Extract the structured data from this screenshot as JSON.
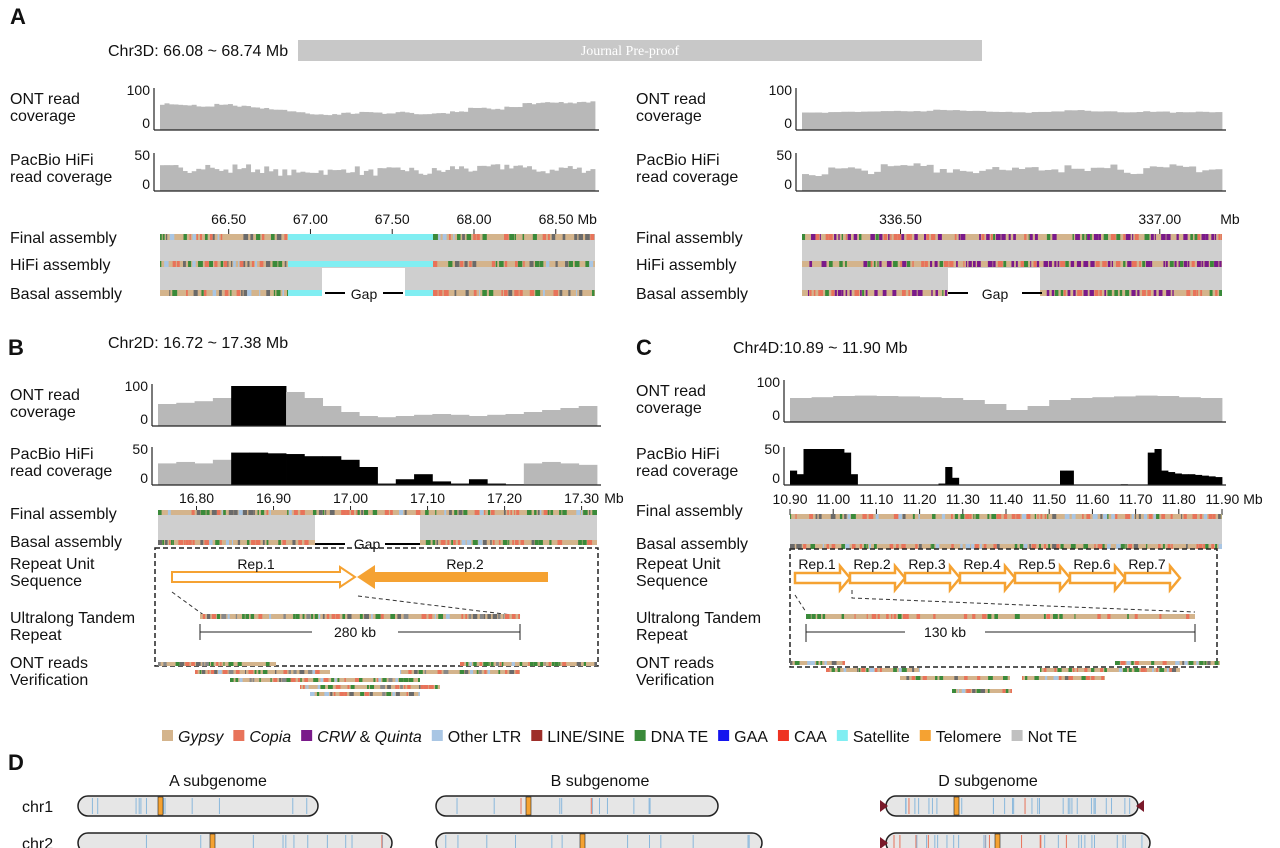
{
  "watermark": "Journal Pre-proof",
  "colors": {
    "Gypsy": "#d4b48c",
    "Copia": "#e8735a",
    "CRW & Quinta": "#7a1a8a",
    "Other LTR": "#a9c6e4",
    "LINE/SINE": "#9e2f2a",
    "DNA TE": "#3a8a3a",
    "GAA": "#1414ee",
    "CAA": "#ee3322",
    "Satellite": "#80eef2",
    "Telomere": "#f5a232",
    "Not TE": "#c0c0c0"
  },
  "panelA": {
    "label": "A",
    "title": "Chr3D: 66.08 ~ 68.74 Mb",
    "left": {
      "ont_label": [
        "ONT read",
        "coverage"
      ],
      "hifi_label": [
        "PacBio HiFi",
        "read coverage"
      ],
      "ont_max": "100",
      "hifi_max": "50",
      "zero": "0",
      "ticks": [
        "66.50",
        "67.00",
        "67.50",
        "68.00",
        "68.50 Mb"
      ],
      "tick_values": [
        66.5,
        67.0,
        67.5,
        68.0,
        68.5
      ],
      "domain": [
        66.08,
        68.74
      ],
      "tracks": [
        "Final assembly",
        "HiFi assembly",
        "Basal assembly"
      ],
      "gap": "Gap",
      "ont": [
        65,
        62,
        58,
        64,
        60,
        55,
        50,
        45,
        40,
        38,
        42,
        45,
        42,
        44,
        40,
        42,
        45,
        55,
        52,
        58,
        66,
        70,
        68,
        70
      ],
      "hifi": [
        32,
        30,
        35,
        28,
        33,
        30,
        26,
        25,
        28,
        27,
        30,
        26,
        28,
        30,
        25,
        28,
        32,
        30,
        33,
        35,
        30,
        28,
        32,
        30
      ]
    },
    "right": {
      "ont_label": [
        "ONT read",
        "coverage"
      ],
      "hifi_label": [
        "PacBio HiFi",
        "read coverage"
      ],
      "ont_max": "100",
      "hifi_max": "50",
      "zero": "0",
      "ticks": [
        "336.50",
        "337.00",
        "Mb"
      ],
      "tick_values": [
        336.5,
        337.0
      ],
      "domain": [
        336.31,
        337.12
      ],
      "tracks": [
        "Final assembly",
        "HiFi assembly",
        "Basal assembly"
      ],
      "gap": "Gap",
      "ont": [
        44,
        45,
        46,
        48,
        47,
        50,
        48,
        46,
        44,
        46,
        49,
        47,
        45,
        46,
        44,
        45
      ],
      "hifi": [
        24,
        30,
        28,
        33,
        36,
        30,
        28,
        33,
        30,
        27,
        32,
        36,
        28,
        30,
        33,
        30
      ]
    }
  },
  "panelB": {
    "label": "B",
    "title": "Chr2D: 16.72 ~ 17.38 Mb",
    "ont_label": [
      "ONT read",
      "coverage"
    ],
    "hifi_label": [
      "PacBio HiFi",
      "read coverage"
    ],
    "ont_max": "100",
    "hifi_max": "50",
    "zero": "0",
    "ticks": [
      "16.80",
      "16.90",
      "17.00",
      "17.10",
      "17.20",
      "17.30",
      "Mb"
    ],
    "tick_values": [
      16.8,
      16.9,
      17.0,
      17.1,
      17.2,
      17.3
    ],
    "domain": [
      16.72,
      17.38
    ],
    "tracks": [
      "Final assembly",
      "Basal assembly"
    ],
    "gap": "Gap",
    "repeat_label": [
      "Repeat Unit",
      "Sequence"
    ],
    "reps": [
      "Rep.1",
      "Rep.2"
    ],
    "ultralong_label": [
      "Ultralong Tandem",
      "Repeat"
    ],
    "length": "280 kb",
    "ont_reads_label": [
      "ONT reads",
      "Verification"
    ],
    "ont": [
      55,
      58,
      62,
      70,
      100,
      100,
      100,
      85,
      70,
      50,
      35,
      25,
      22,
      25,
      28,
      30,
      28,
      25,
      28,
      30,
      35,
      40,
      45,
      50
    ],
    "ont_black": [
      0,
      0,
      0,
      0,
      1,
      1,
      1,
      0,
      0,
      0,
      0,
      0,
      0,
      0,
      0,
      0,
      0,
      0,
      0,
      0,
      0,
      0,
      0,
      0
    ],
    "hifi": [
      30,
      32,
      30,
      35,
      45,
      45,
      44,
      43,
      40,
      40,
      35,
      25,
      2,
      8,
      15,
      5,
      2,
      8,
      2,
      1,
      30,
      32,
      30,
      28
    ],
    "hifi_black": [
      0,
      0,
      0,
      0,
      1,
      1,
      1,
      1,
      1,
      1,
      1,
      1,
      1,
      1,
      1,
      1,
      1,
      1,
      1,
      1,
      0,
      0,
      0,
      0
    ]
  },
  "panelC": {
    "label": "C",
    "title": "Chr4D:10.89 ~ 11.90 Mb",
    "ont_label": [
      "ONT read",
      "coverage"
    ],
    "hifi_label": [
      "PacBio HiFi",
      "read coverage"
    ],
    "ont_max": "100",
    "hifi_max": "50",
    "zero": "0",
    "ticks": [
      "10.90",
      "11.00",
      "11.10",
      "11.20",
      "11.30",
      "11.40",
      "11.50",
      "11.60",
      "11.70",
      "11.80",
      "11.90 Mb"
    ],
    "tick_values": [
      10.9,
      11.0,
      11.1,
      11.2,
      11.3,
      11.4,
      11.5,
      11.6,
      11.7,
      11.8,
      11.9
    ],
    "domain": [
      10.89,
      11.9
    ],
    "tracks": [
      "Final assembly",
      "Basal assembly"
    ],
    "repeat_label": [
      "Repeat Unit",
      "Sequence"
    ],
    "reps": [
      "Rep.1",
      "Rep.2",
      "Rep.3",
      "Rep.4",
      "Rep.5",
      "Rep.6",
      "Rep.7"
    ],
    "ultralong_label": [
      "Ultralong Tandem",
      "Repeat"
    ],
    "length": "130 kb",
    "ont_reads_label": [
      "ONT reads",
      "Verification"
    ],
    "ont": [
      60,
      62,
      65,
      66,
      65,
      64,
      62,
      60,
      55,
      45,
      30,
      40,
      55,
      60,
      62,
      64,
      66,
      65,
      62,
      60
    ],
    "hifi": [
      20,
      15,
      50,
      50,
      50,
      50,
      50,
      50,
      45,
      15,
      0,
      0,
      0,
      0,
      0,
      0,
      0,
      0,
      0,
      0,
      0,
      0,
      2,
      25,
      10,
      0,
      0,
      0,
      0,
      0,
      0,
      0,
      0,
      0,
      0,
      0,
      0,
      0,
      0,
      0,
      20,
      20,
      0,
      0,
      0,
      0,
      0,
      0,
      0,
      1,
      0,
      0,
      0,
      45,
      50,
      20,
      18,
      16,
      15,
      15,
      14,
      13,
      12,
      11
    ]
  },
  "legend": [
    "Gypsy",
    "Copia",
    "CRW & Quinta",
    "Other LTR",
    "LINE/SINE",
    "DNA TE",
    "GAA",
    "CAA",
    "Satellite",
    "Telomere",
    "Not TE"
  ],
  "legend_italic": [
    "Gypsy",
    "Copia",
    "CRW",
    "Quinta"
  ],
  "panelD": {
    "label": "D",
    "subgenomes": [
      "A subgenome",
      "B subgenome",
      "D subgenome"
    ],
    "chromosomes": [
      "chr1",
      "chr2"
    ]
  }
}
